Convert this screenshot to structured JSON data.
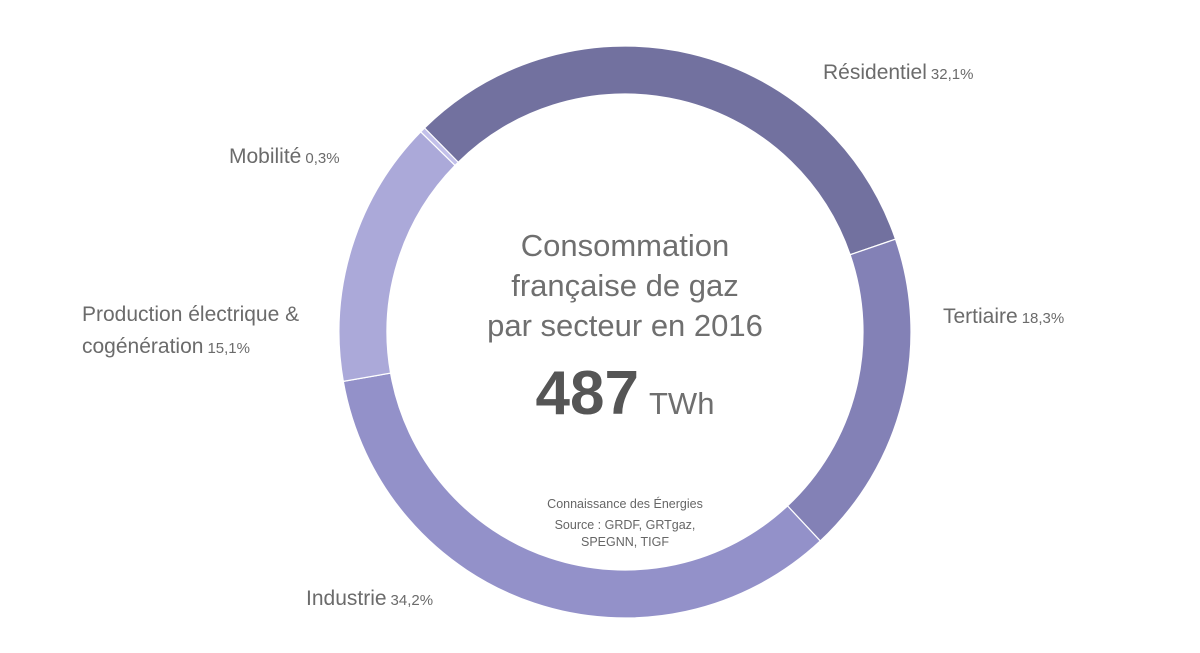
{
  "chart_data": {
    "type": "pie",
    "title_lines": [
      "Consommation",
      "française de gaz",
      "par secteur en 2016"
    ],
    "total_value": "487",
    "total_unit": "TWh",
    "credit": "Connaissance des Énergies",
    "source": "Source : GRDF, GRTgaz, SPEGNN, TIGF",
    "slices": [
      {
        "name": "Résidentiel",
        "value": 32.1,
        "label": "32,1%",
        "color": "#72719f"
      },
      {
        "name": "Tertiaire",
        "value": 18.3,
        "label": "18,3%",
        "color": "#8381b6"
      },
      {
        "name": "Industrie",
        "value": 34.2,
        "label": "34,2%",
        "color": "#9391c9"
      },
      {
        "name": "Production électrique & cogénération",
        "value": 15.1,
        "label": "15,1%",
        "color": "#aba9d9"
      },
      {
        "name": "Mobilité",
        "value": 0.3,
        "label": "0,3%",
        "color": "#c2c0ea"
      }
    ]
  }
}
